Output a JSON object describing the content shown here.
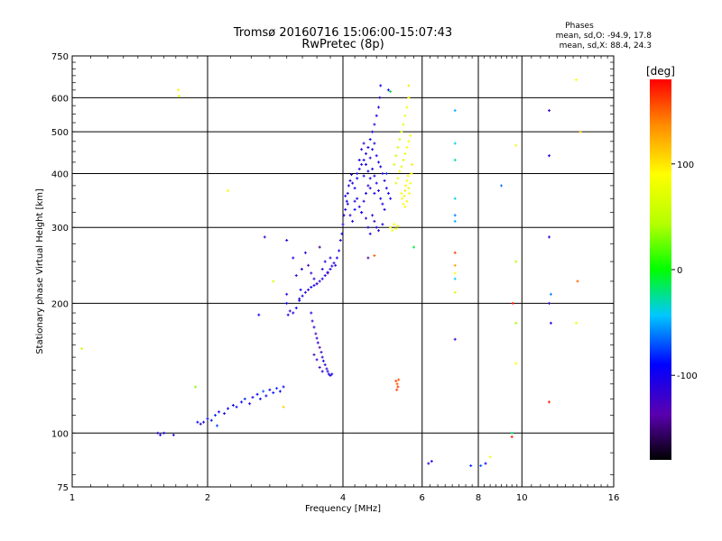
{
  "chart_data": {
    "type": "scatter",
    "title": "Tromsø 20160716 15:06:00-15:07:43",
    "subtitle": "RwPretec (8p)",
    "xlabel": "Frequency [MHz]",
    "ylabel": "Stationary phase Virtual Height [km]",
    "x_scale": "log",
    "y_scale": "log",
    "xlim": [
      1,
      16
    ],
    "ylim": [
      75,
      750
    ],
    "x_ticks": [
      {
        "value": 1,
        "label": "1"
      },
      {
        "value": 2,
        "label": "2"
      },
      {
        "value": 4,
        "label": "4"
      },
      {
        "value": 6,
        "label": "6"
      },
      {
        "value": 8,
        "label": "8"
      },
      {
        "value": 10,
        "label": "10"
      },
      {
        "value": 16,
        "label": "16"
      }
    ],
    "y_ticks": [
      {
        "value": 75,
        "label": "75"
      },
      {
        "value": 100,
        "label": "100"
      },
      {
        "value": 200,
        "label": "200"
      },
      {
        "value": 300,
        "label": "300"
      },
      {
        "value": 400,
        "label": "400"
      },
      {
        "value": 500,
        "label": "500"
      },
      {
        "value": 600,
        "label": "600"
      },
      {
        "value": 750,
        "label": "750"
      }
    ],
    "grid": true,
    "stats": {
      "heading": "Phases",
      "line_o": "mean, sd,O: -94.9, 17.8",
      "line_x": "mean, sd,X:  88.4, 24.3"
    },
    "colorbar": {
      "label": "[deg]",
      "range": [
        -180,
        180
      ],
      "ticks": [
        {
          "value": 100,
          "label": "100"
        },
        {
          "value": 0,
          "label": "0"
        },
        {
          "value": -100,
          "label": "-100"
        }
      ]
    },
    "points": [
      [
        1.55,
        100,
        -110
      ],
      [
        1.57,
        99,
        -105
      ],
      [
        1.6,
        100,
        -100
      ],
      [
        1.68,
        99,
        -110
      ],
      [
        1.05,
        157,
        60
      ],
      [
        1.72,
        625,
        95
      ],
      [
        1.73,
        605,
        80
      ],
      [
        1.88,
        128,
        30
      ],
      [
        1.9,
        106,
        -90
      ],
      [
        1.93,
        105,
        -110
      ],
      [
        1.96,
        106,
        -100
      ],
      [
        2.0,
        108,
        -95
      ],
      [
        2.04,
        107,
        -85
      ],
      [
        2.08,
        110,
        -80
      ],
      [
        2.1,
        104,
        -75
      ],
      [
        2.12,
        112,
        -100
      ],
      [
        2.18,
        111,
        -100
      ],
      [
        2.22,
        114,
        -95
      ],
      [
        2.28,
        116,
        -90
      ],
      [
        2.32,
        115,
        -85
      ],
      [
        2.38,
        118,
        -90
      ],
      [
        2.42,
        120,
        -80
      ],
      [
        2.48,
        117,
        -100
      ],
      [
        2.52,
        121,
        -95
      ],
      [
        2.58,
        123,
        -90
      ],
      [
        2.62,
        120,
        -85
      ],
      [
        2.66,
        125,
        -70
      ],
      [
        2.7,
        122,
        -90
      ],
      [
        2.75,
        126,
        -95
      ],
      [
        2.8,
        124,
        -85
      ],
      [
        2.85,
        127,
        -80
      ],
      [
        2.9,
        125,
        -90
      ],
      [
        2.95,
        128,
        -95
      ],
      [
        2.22,
        365,
        85
      ],
      [
        2.6,
        188,
        -100
      ],
      [
        2.68,
        285,
        -120
      ],
      [
        2.8,
        225,
        70
      ],
      [
        2.95,
        115,
        110
      ],
      [
        3.0,
        280,
        -110
      ],
      [
        3.0,
        210,
        -105
      ],
      [
        3.0,
        200,
        -100
      ],
      [
        3.02,
        188,
        -110
      ],
      [
        3.05,
        192,
        -115
      ],
      [
        3.1,
        190,
        -100
      ],
      [
        3.15,
        195,
        -95
      ],
      [
        3.2,
        203,
        -90
      ],
      [
        3.25,
        208,
        -100
      ],
      [
        3.3,
        212,
        -110
      ],
      [
        3.35,
        215,
        -105
      ],
      [
        3.4,
        218,
        -100
      ],
      [
        3.45,
        220,
        -95
      ],
      [
        3.5,
        222,
        -100
      ],
      [
        3.55,
        225,
        -110
      ],
      [
        3.6,
        228,
        -105
      ],
      [
        3.65,
        232,
        -100
      ],
      [
        3.7,
        236,
        -95
      ],
      [
        3.75,
        240,
        -100
      ],
      [
        3.78,
        244,
        -105
      ],
      [
        3.82,
        248,
        -110
      ],
      [
        3.1,
        255,
        -100
      ],
      [
        3.15,
        232,
        -110
      ],
      [
        3.2,
        205,
        -120
      ],
      [
        3.22,
        215,
        -100
      ],
      [
        3.24,
        240,
        -105
      ],
      [
        3.3,
        262,
        -110
      ],
      [
        3.35,
        245,
        -130
      ],
      [
        3.4,
        235,
        -120
      ],
      [
        3.45,
        228,
        -110
      ],
      [
        3.5,
        222,
        -125
      ],
      [
        3.55,
        270,
        -150
      ],
      [
        3.6,
        240,
        -110
      ],
      [
        3.65,
        250,
        -100
      ],
      [
        3.7,
        235,
        -140
      ],
      [
        3.75,
        255,
        -110
      ],
      [
        3.4,
        190,
        -110
      ],
      [
        3.42,
        182,
        -120
      ],
      [
        3.45,
        176,
        -115
      ],
      [
        3.48,
        170,
        -130
      ],
      [
        3.5,
        166,
        -120
      ],
      [
        3.52,
        162,
        -110
      ],
      [
        3.55,
        158,
        -135
      ],
      [
        3.58,
        154,
        -120
      ],
      [
        3.6,
        150,
        -110
      ],
      [
        3.62,
        147,
        -100
      ],
      [
        3.65,
        144,
        -115
      ],
      [
        3.68,
        141,
        -110
      ],
      [
        3.7,
        139,
        -105
      ],
      [
        3.72,
        137,
        -110
      ],
      [
        3.75,
        136,
        -100
      ],
      [
        3.78,
        137,
        -105
      ],
      [
        3.5,
        148,
        -120
      ],
      [
        3.55,
        142,
        -125
      ],
      [
        3.6,
        139,
        -110
      ],
      [
        3.45,
        152,
        -130
      ],
      [
        3.85,
        245,
        -110
      ],
      [
        3.88,
        255,
        -100
      ],
      [
        3.92,
        265,
        -105
      ],
      [
        3.95,
        280,
        -110
      ],
      [
        3.98,
        290,
        -100
      ],
      [
        4.0,
        305,
        -105
      ],
      [
        4.02,
        320,
        -110
      ],
      [
        4.05,
        330,
        -100
      ],
      [
        4.08,
        345,
        -95
      ],
      [
        4.1,
        360,
        -105
      ],
      [
        4.12,
        375,
        -110
      ],
      [
        4.15,
        385,
        -100
      ],
      [
        4.18,
        398,
        -105
      ],
      [
        4.2,
        380,
        -110
      ],
      [
        4.25,
        370,
        -100
      ],
      [
        4.3,
        390,
        -95
      ],
      [
        4.35,
        410,
        -105
      ],
      [
        4.4,
        420,
        -110
      ],
      [
        4.45,
        430,
        -100
      ],
      [
        4.5,
        445,
        -105
      ],
      [
        4.55,
        460,
        -100
      ],
      [
        4.6,
        480,
        -95
      ],
      [
        4.65,
        500,
        -105
      ],
      [
        4.7,
        520,
        -110
      ],
      [
        4.75,
        545,
        -100
      ],
      [
        4.8,
        570,
        -105
      ],
      [
        4.83,
        600,
        -110
      ],
      [
        4.85,
        640,
        -100
      ],
      [
        4.05,
        355,
        -100
      ],
      [
        4.1,
        340,
        -105
      ],
      [
        4.15,
        320,
        -110
      ],
      [
        4.2,
        310,
        -100
      ],
      [
        4.25,
        330,
        -95
      ],
      [
        4.3,
        350,
        -105
      ],
      [
        4.35,
        335,
        -110
      ],
      [
        4.4,
        325,
        -100
      ],
      [
        4.45,
        345,
        -105
      ],
      [
        4.5,
        360,
        -100
      ],
      [
        4.55,
        375,
        -110
      ],
      [
        4.6,
        390,
        -105
      ],
      [
        4.65,
        410,
        -100
      ],
      [
        4.7,
        395,
        -95
      ],
      [
        4.75,
        380,
        -105
      ],
      [
        4.8,
        365,
        -110
      ],
      [
        4.85,
        350,
        -100
      ],
      [
        4.9,
        340,
        -105
      ],
      [
        4.95,
        330,
        -100
      ],
      [
        4.3,
        400,
        -110
      ],
      [
        4.35,
        430,
        -100
      ],
      [
        4.4,
        455,
        -105
      ],
      [
        4.45,
        470,
        -110
      ],
      [
        4.5,
        420,
        -100
      ],
      [
        4.55,
        405,
        -95
      ],
      [
        4.6,
        435,
        -105
      ],
      [
        4.65,
        455,
        -100
      ],
      [
        4.7,
        470,
        -110
      ],
      [
        4.75,
        440,
        -105
      ],
      [
        4.8,
        425,
        -100
      ],
      [
        4.85,
        415,
        -95
      ],
      [
        4.9,
        400,
        -105
      ],
      [
        4.95,
        385,
        -110
      ],
      [
        5.0,
        370,
        -100
      ],
      [
        5.05,
        360,
        -95
      ],
      [
        5.1,
        350,
        -100
      ],
      [
        4.45,
        395,
        -105
      ],
      [
        4.6,
        370,
        -110
      ],
      [
        4.7,
        360,
        -100
      ],
      [
        4.55,
        300,
        -110
      ],
      [
        4.6,
        290,
        -100
      ],
      [
        4.7,
        310,
        -120
      ],
      [
        4.75,
        300,
        -100
      ],
      [
        4.8,
        295,
        -110
      ],
      [
        4.9,
        305,
        -100
      ],
      [
        4.65,
        320,
        -115
      ],
      [
        4.5,
        315,
        -120
      ],
      [
        4.4,
        325,
        -105
      ],
      [
        4.25,
        345,
        -110
      ],
      [
        4.55,
        255,
        -140
      ],
      [
        4.7,
        258,
        150
      ],
      [
        5.05,
        625,
        -100
      ],
      [
        5.2,
        420,
        60
      ],
      [
        5.25,
        440,
        55
      ],
      [
        5.3,
        460,
        60
      ],
      [
        5.35,
        480,
        65
      ],
      [
        5.4,
        500,
        70
      ],
      [
        5.45,
        520,
        75
      ],
      [
        5.5,
        545,
        80
      ],
      [
        5.55,
        570,
        85
      ],
      [
        5.6,
        600,
        90
      ],
      [
        5.6,
        640,
        100
      ],
      [
        5.25,
        380,
        70
      ],
      [
        5.3,
        390,
        75
      ],
      [
        5.35,
        405,
        80
      ],
      [
        5.4,
        415,
        75
      ],
      [
        5.45,
        430,
        70
      ],
      [
        5.5,
        445,
        80
      ],
      [
        5.55,
        460,
        85
      ],
      [
        5.6,
        475,
        90
      ],
      [
        5.65,
        490,
        85
      ],
      [
        5.4,
        360,
        80
      ],
      [
        5.42,
        350,
        85
      ],
      [
        5.45,
        340,
        90
      ],
      [
        5.48,
        355,
        95
      ],
      [
        5.5,
        365,
        100
      ],
      [
        5.52,
        375,
        95
      ],
      [
        5.55,
        385,
        90
      ],
      [
        5.58,
        395,
        85
      ],
      [
        5.6,
        370,
        80
      ],
      [
        5.62,
        360,
        85
      ],
      [
        5.65,
        380,
        90
      ],
      [
        5.68,
        400,
        95
      ],
      [
        5.7,
        420,
        100
      ],
      [
        5.5,
        335,
        85
      ],
      [
        5.55,
        345,
        95
      ],
      [
        5.1,
        300,
        80
      ],
      [
        5.15,
        295,
        85
      ],
      [
        5.2,
        305,
        90
      ],
      [
        5.25,
        298,
        75
      ],
      [
        5.3,
        302,
        80
      ],
      [
        5.1,
        620,
        -10
      ],
      [
        5.0,
        400,
        -80
      ],
      [
        5.25,
        132,
        160
      ],
      [
        5.28,
        130,
        150
      ],
      [
        5.3,
        128,
        165
      ],
      [
        5.32,
        133,
        155
      ],
      [
        5.27,
        126,
        160
      ],
      [
        5.75,
        270,
        -10
      ],
      [
        6.2,
        85,
        -100
      ],
      [
        6.3,
        86,
        -110
      ],
      [
        7.1,
        560,
        -50
      ],
      [
        7.1,
        470,
        -40
      ],
      [
        7.1,
        430,
        -30
      ],
      [
        7.1,
        350,
        -40
      ],
      [
        7.1,
        320,
        -60
      ],
      [
        7.1,
        310,
        -50
      ],
      [
        7.1,
        262,
        160
      ],
      [
        7.1,
        245,
        130
      ],
      [
        7.1,
        235,
        90
      ],
      [
        7.1,
        228,
        -40
      ],
      [
        7.1,
        212,
        70
      ],
      [
        7.1,
        165,
        -120
      ],
      [
        7.7,
        84,
        -80
      ],
      [
        8.1,
        84,
        -70
      ],
      [
        8.3,
        85,
        -100
      ],
      [
        8.5,
        88,
        80
      ],
      [
        9.5,
        100,
        -20
      ],
      [
        9.5,
        98,
        170
      ],
      [
        9.7,
        465,
        80
      ],
      [
        9.7,
        250,
        50
      ],
      [
        9.55,
        200,
        175
      ],
      [
        9.7,
        180,
        40
      ],
      [
        9.7,
        145,
        90
      ],
      [
        11.5,
        560,
        -120
      ],
      [
        11.5,
        440,
        -100
      ],
      [
        11.5,
        285,
        -120
      ],
      [
        11.6,
        210,
        -60
      ],
      [
        11.5,
        200,
        -120
      ],
      [
        11.6,
        180,
        -110
      ],
      [
        11.5,
        118,
        170
      ],
      [
        13.2,
        660,
        90
      ],
      [
        13.5,
        500,
        110
      ],
      [
        13.3,
        225,
        150
      ],
      [
        13.2,
        180,
        80
      ],
      [
        9.0,
        375,
        -60
      ]
    ]
  }
}
